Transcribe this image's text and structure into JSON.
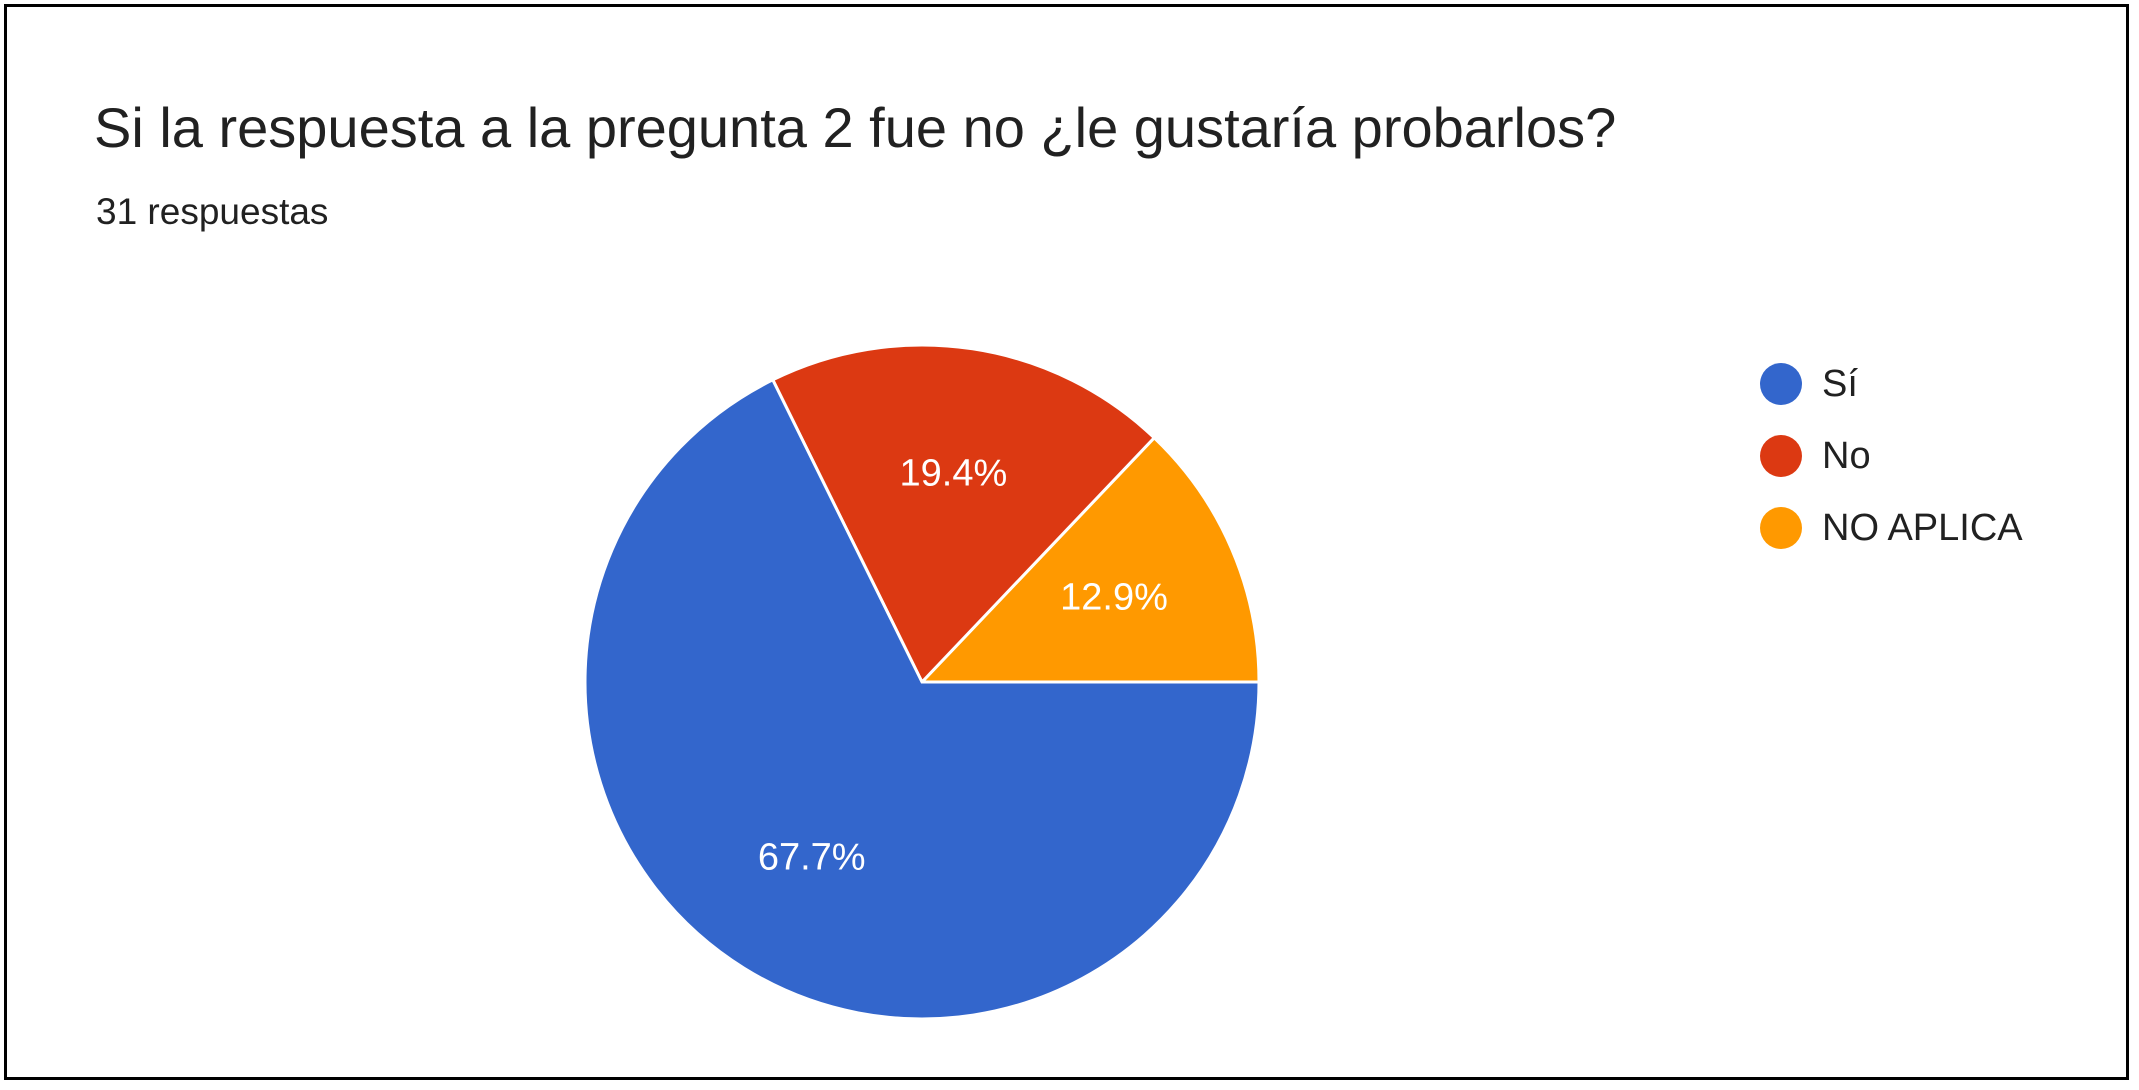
{
  "title": "Si la respuesta a la pregunta 2 fue no ¿le gustaría probarlos?",
  "subtitle": "31 respuestas",
  "chart_data": {
    "type": "pie",
    "categories": [
      "Sí",
      "No",
      "NO APLICA"
    ],
    "values": [
      67.7,
      19.4,
      12.9
    ],
    "labels": [
      "67.7%",
      "19.4%",
      "12.9%"
    ],
    "colors": [
      "#3366cc",
      "#dc3912",
      "#ff9900"
    ],
    "legend_position": "right",
    "title": "Si la respuesta a la pregunta 2 fue no ¿le gustaría probarlos?"
  }
}
